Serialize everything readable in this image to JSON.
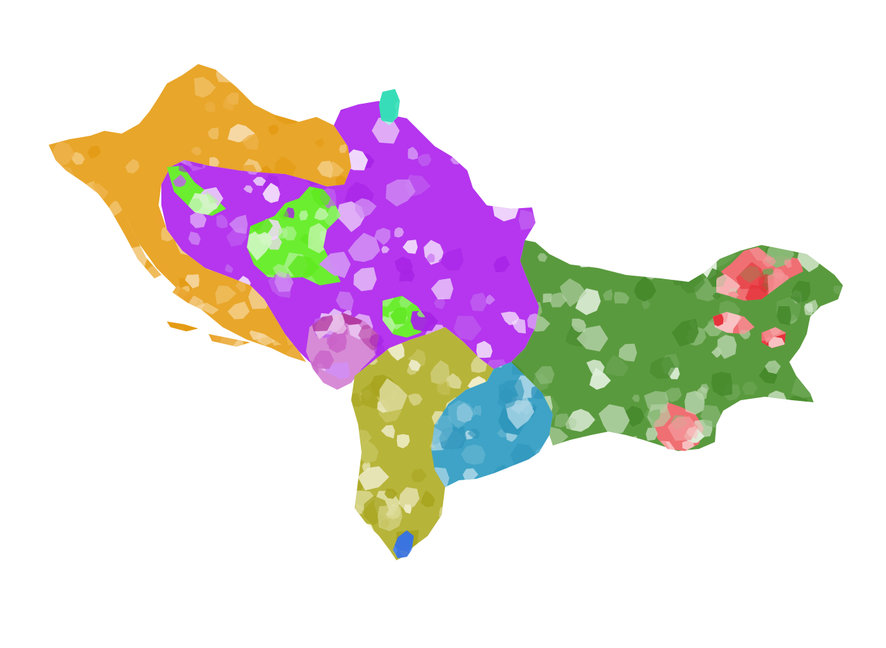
{
  "map": {
    "background_color": "#ffffff",
    "regions": [
      {
        "id": "croatia",
        "base_color": "#e8a62a",
        "shades": [
          "#e39a12",
          "#edb24a",
          "#f3c97a",
          "#f6d9a6",
          "#eaa530"
        ]
      },
      {
        "id": "bosnia-serbia-purple",
        "base_color": "#b536ee",
        "shades": [
          "#a724e6",
          "#c061f0",
          "#d18ef4",
          "#e7c6f8",
          "#f1dbfb"
        ]
      },
      {
        "id": "bosnia-green-enclave",
        "base_color": "#6bee30",
        "shades": [
          "#5fe81f",
          "#8ef06a",
          "#b3f49b",
          "#d2f7c4"
        ]
      },
      {
        "id": "vojvodina-teal",
        "base_color": "#46e2c0",
        "shades": [
          "#37dcb7",
          "#a8f3e3"
        ]
      },
      {
        "id": "montenegro-pink",
        "base_color": "#d78bd6",
        "shades": [
          "#c963c8",
          "#b23aa0",
          "#e8bde8"
        ]
      },
      {
        "id": "kosovo-albania-olive",
        "base_color": "#b7b43a",
        "shades": [
          "#a8a520",
          "#c5c35b",
          "#d8d68e",
          "#eceac4",
          "#fbf9e4"
        ]
      },
      {
        "id": "macedonia-blue",
        "base_color": "#3ea3c6",
        "shades": [
          "#2f95bb",
          "#6bb8d4",
          "#a9d5e6"
        ]
      },
      {
        "id": "bulgaria-green",
        "base_color": "#5a9a3e",
        "shades": [
          "#468a2c",
          "#6ba553",
          "#8cbb79",
          "#b5d3a8",
          "#dfeeda"
        ]
      },
      {
        "id": "bulgaria-red",
        "base_color": "#ef6f73",
        "shades": [
          "#e5323a",
          "#f4979a",
          "#f9c3c4"
        ]
      },
      {
        "id": "greece-blue",
        "base_color": "#4f86e6",
        "shades": [
          "#3a74e0",
          "#8fb2ef"
        ]
      }
    ]
  }
}
